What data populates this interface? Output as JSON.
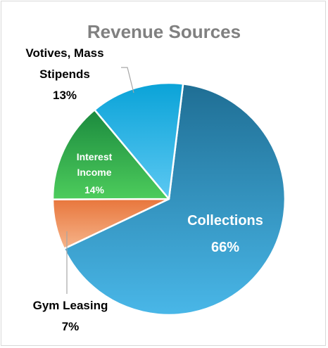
{
  "chart_data": {
    "type": "pie",
    "title": "Revenue Sources",
    "slices": [
      {
        "label": "Collections",
        "value": 66,
        "display": "66%",
        "color_start": "#1f6e94",
        "color_end": "#49b7e8",
        "label_color": "#ffffff"
      },
      {
        "label": "Gym Leasing",
        "value": 7,
        "display": "7%",
        "color_start": "#e8763c",
        "color_end": "#f6b48a",
        "label_color": "#000000"
      },
      {
        "label": "Interest Income",
        "value": 14,
        "display": "14%",
        "color_start": "#1b8a3e",
        "color_end": "#4dcc5c",
        "label_color": "#ffffff"
      },
      {
        "label": "Votives, Mass Stipends",
        "value": 13,
        "display": "13%",
        "color_start": "#0aa3d8",
        "color_end": "#5cc8f2",
        "label_color": "#000000"
      }
    ],
    "legend": "none"
  }
}
